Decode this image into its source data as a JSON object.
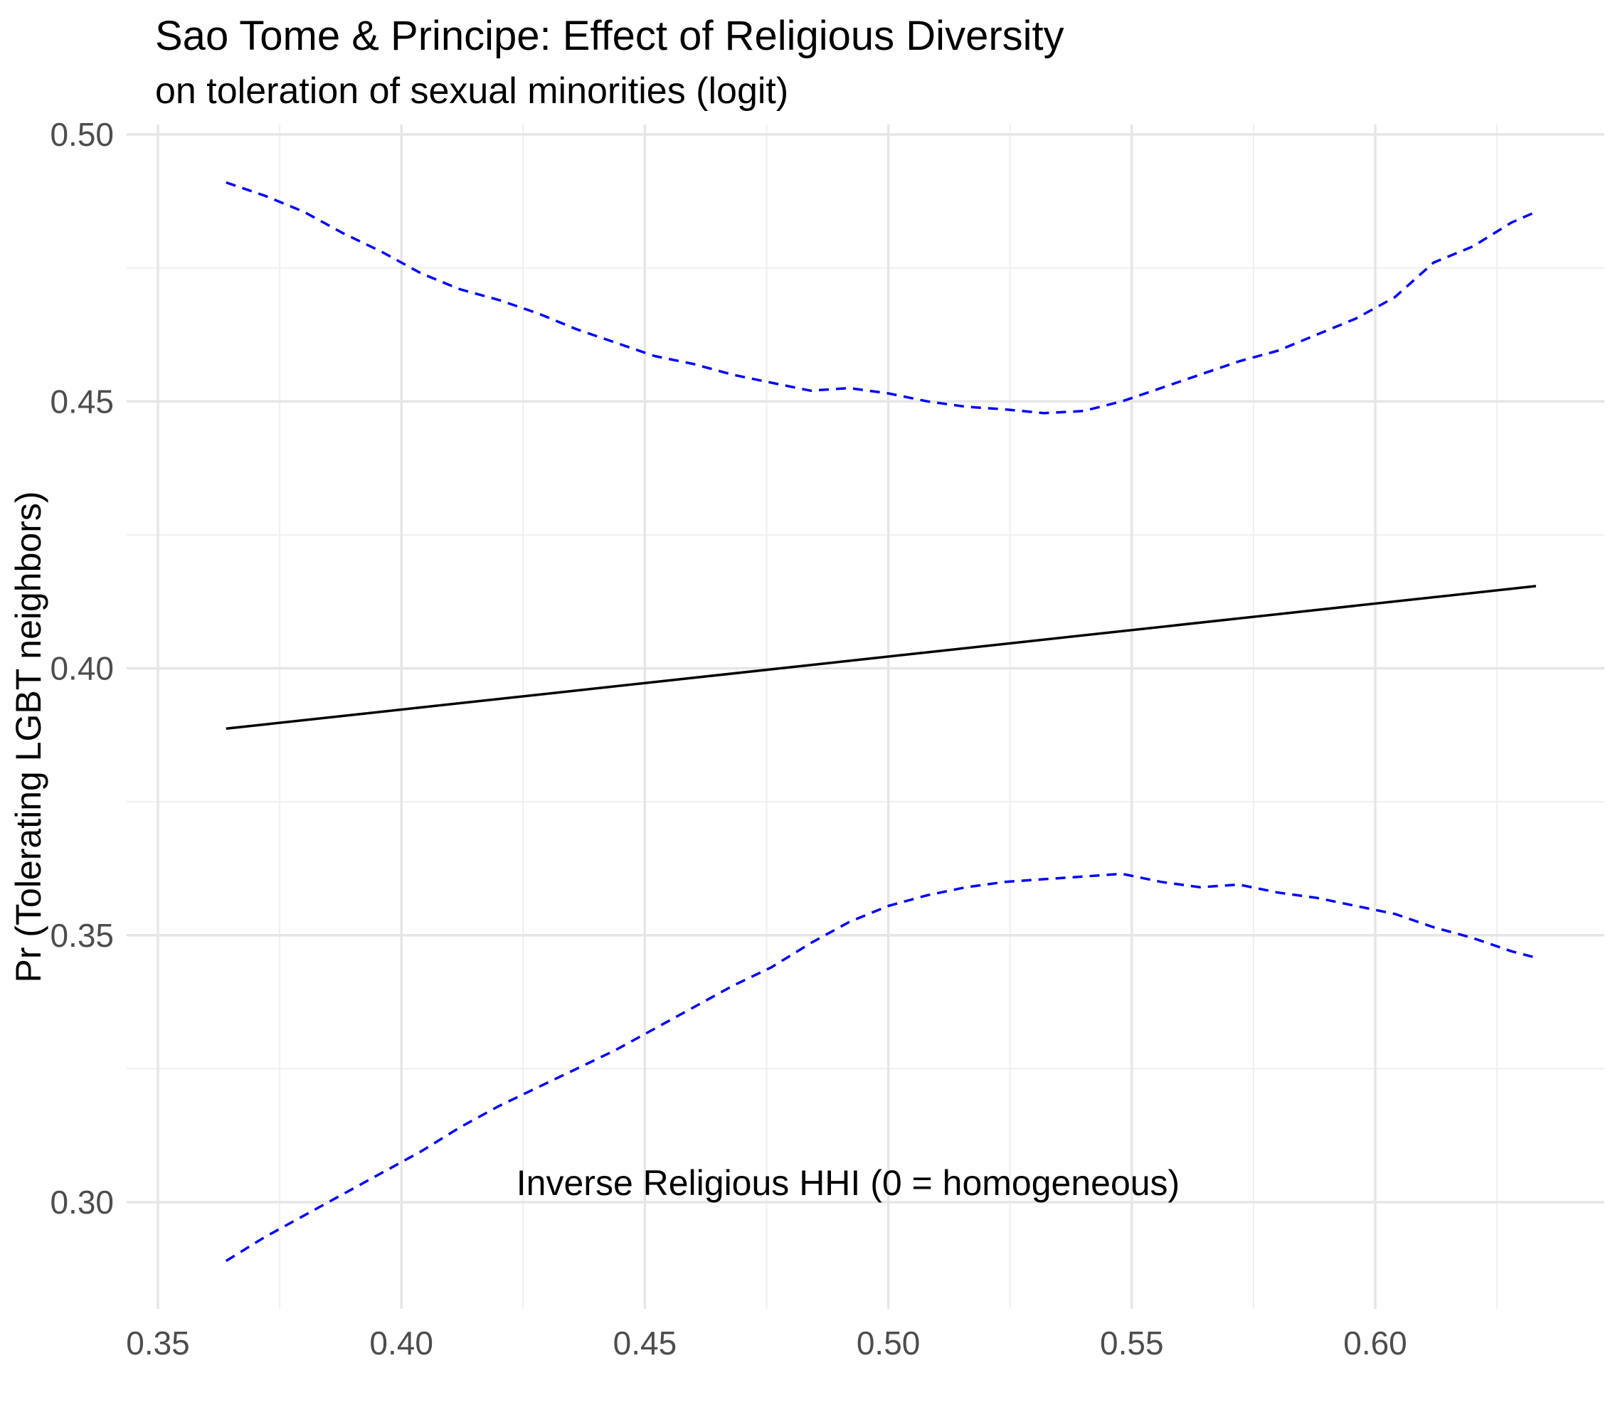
{
  "chart_data": {
    "type": "line",
    "title": "Sao Tome & Principe: Effect of Religious Diversity",
    "subtitle": "on toleration of sexual minorities (logit)",
    "xlabel": "Inverse Religious HHI (0 = homogeneous)",
    "ylabel": "Pr (Tolerating LGBT neighbors)",
    "xlim": [
      0.35,
      0.645
    ],
    "ylim": [
      0.28,
      0.5
    ],
    "xticks": [
      "0.35",
      "0.40",
      "0.45",
      "0.50",
      "0.55",
      "0.60"
    ],
    "yticks": [
      "0.30",
      "0.35",
      "0.40",
      "0.45",
      "0.50"
    ],
    "grid": true,
    "series": [
      {
        "style": "solid",
        "color": "#000000",
        "x": [
          0.364,
          0.633
        ],
        "y": [
          0.3887,
          0.4154
        ]
      },
      {
        "style": "dashed",
        "color": "#0000ff",
        "x": [
          0.364,
          0.372,
          0.38,
          0.388,
          0.396,
          0.404,
          0.412,
          0.42,
          0.428,
          0.436,
          0.444,
          0.452,
          0.46,
          0.468,
          0.476,
          0.484,
          0.492,
          0.5,
          0.508,
          0.516,
          0.524,
          0.532,
          0.54,
          0.548,
          0.556,
          0.564,
          0.572,
          0.58,
          0.588,
          0.596,
          0.604,
          0.612,
          0.62,
          0.628,
          0.633
        ],
        "y": [
          0.491,
          0.4885,
          0.4855,
          0.4815,
          0.478,
          0.474,
          0.471,
          0.469,
          0.4665,
          0.4635,
          0.461,
          0.4585,
          0.457,
          0.455,
          0.4535,
          0.452,
          0.4525,
          0.4515,
          0.45,
          0.449,
          0.4485,
          0.4478,
          0.4482,
          0.45,
          0.4525,
          0.455,
          0.4575,
          0.4595,
          0.4625,
          0.4655,
          0.4695,
          0.476,
          0.479,
          0.4835,
          0.4855
        ]
      },
      {
        "style": "dashed",
        "color": "#0000ff",
        "x": [
          0.364,
          0.372,
          0.38,
          0.388,
          0.396,
          0.404,
          0.412,
          0.42,
          0.428,
          0.436,
          0.444,
          0.452,
          0.46,
          0.468,
          0.476,
          0.484,
          0.492,
          0.5,
          0.508,
          0.516,
          0.524,
          0.532,
          0.54,
          0.548,
          0.556,
          0.564,
          0.572,
          0.58,
          0.588,
          0.596,
          0.604,
          0.612,
          0.62,
          0.628,
          0.633
        ],
        "y": [
          0.289,
          0.2935,
          0.2975,
          0.3015,
          0.3055,
          0.3095,
          0.314,
          0.318,
          0.3215,
          0.325,
          0.3285,
          0.3325,
          0.3365,
          0.3405,
          0.344,
          0.3485,
          0.3525,
          0.3555,
          0.3575,
          0.359,
          0.36,
          0.3605,
          0.361,
          0.3615,
          0.36,
          0.359,
          0.3595,
          0.358,
          0.357,
          0.3555,
          0.354,
          0.3515,
          0.3495,
          0.347,
          0.3458
        ]
      }
    ]
  }
}
